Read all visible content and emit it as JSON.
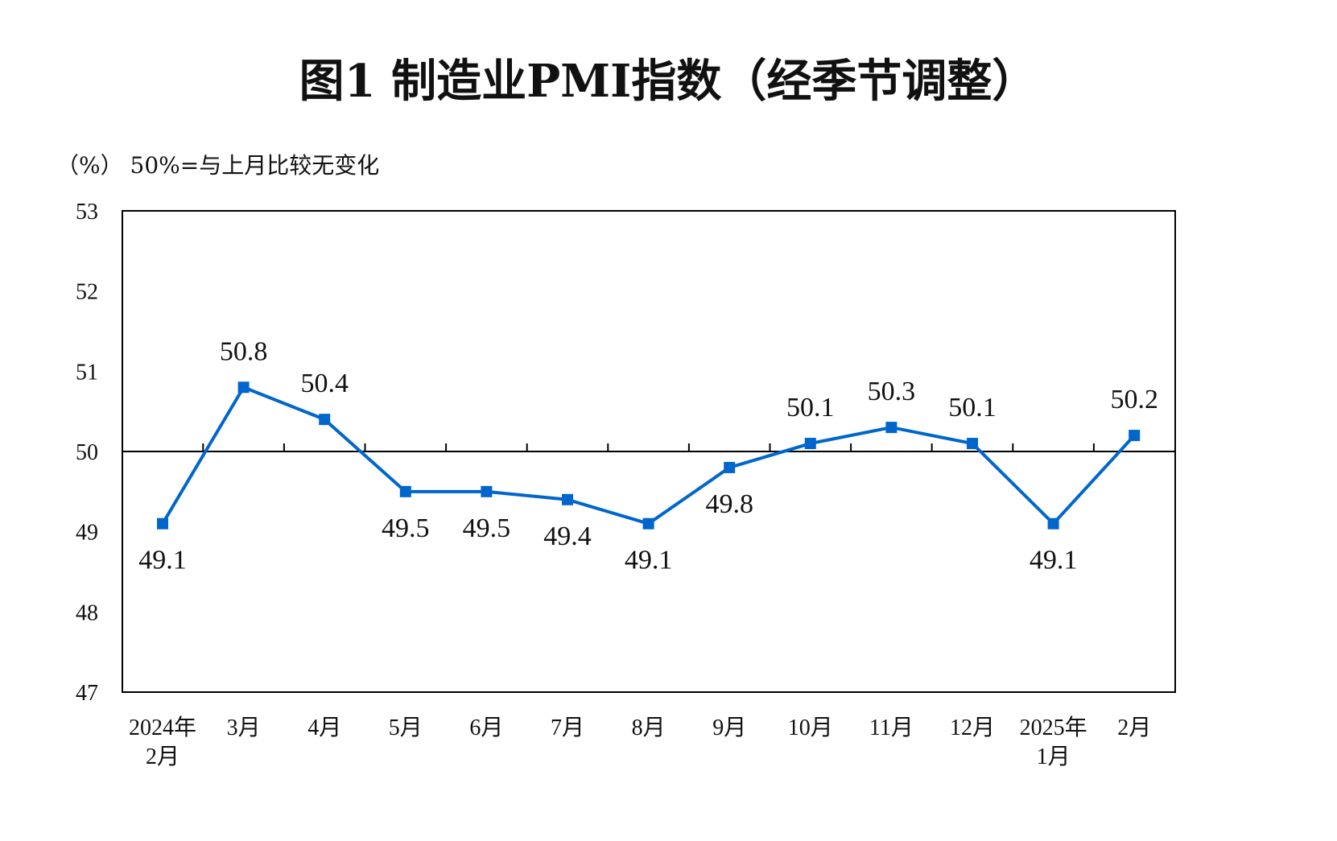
{
  "chart_data": {
    "type": "line",
    "title": "图1  制造业PMI指数（经季节调整）",
    "unit_note": "（%） 50%=与上月比较无变化",
    "categories": [
      [
        "2024年",
        "2月"
      ],
      [
        "3月"
      ],
      [
        "4月"
      ],
      [
        "5月"
      ],
      [
        "6月"
      ],
      [
        "7月"
      ],
      [
        "8月"
      ],
      [
        "9月"
      ],
      [
        "10月"
      ],
      [
        "11月"
      ],
      [
        "12月"
      ],
      [
        "2025年",
        "1月"
      ],
      [
        "2月"
      ]
    ],
    "series": [
      {
        "values": [
          49.1,
          50.8,
          50.4,
          49.5,
          49.5,
          49.4,
          49.1,
          49.8,
          50.1,
          50.3,
          50.1,
          49.1,
          50.2
        ],
        "labels": [
          "49.1",
          "50.8",
          "50.4",
          "49.5",
          "49.5",
          "49.4",
          "49.1",
          "49.8",
          "50.1",
          "50.3",
          "50.1",
          "49.1",
          "50.2"
        ],
        "label_positions": [
          "below",
          "above",
          "above",
          "below",
          "below",
          "below",
          "below",
          "below",
          "above",
          "above",
          "above",
          "below",
          "above"
        ],
        "color": "#0066cc",
        "marker": "square"
      }
    ],
    "ylim": [
      47,
      53
    ],
    "yticks": [
      47,
      48,
      49,
      50,
      51,
      52,
      53
    ],
    "reference_line": 50,
    "grid": false,
    "legend": "none"
  }
}
